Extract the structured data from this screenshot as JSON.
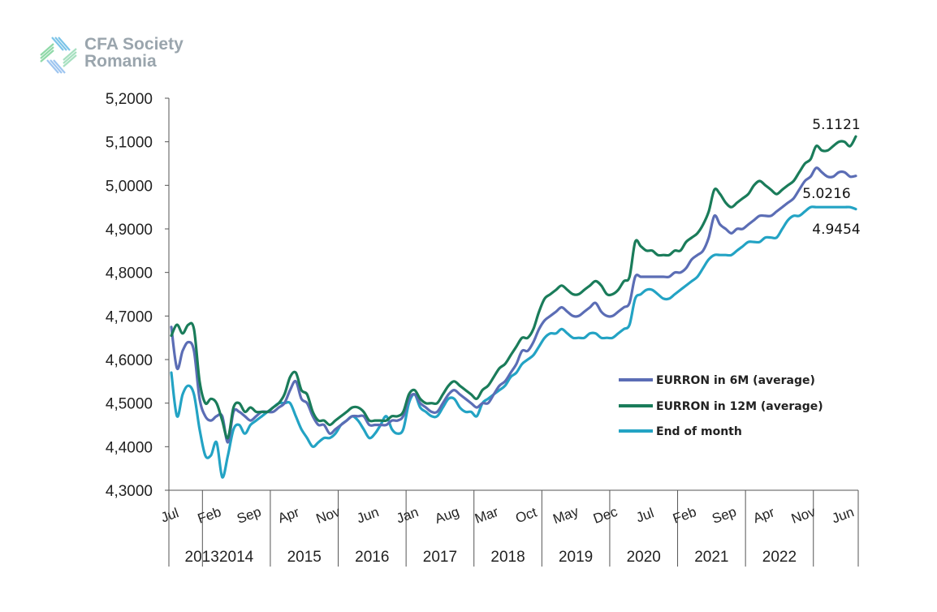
{
  "logo": {
    "line1": "CFA Society",
    "line2": "Romania"
  },
  "chart_data": {
    "type": "line",
    "y_ticks": [
      "4,3000",
      "4,4000",
      "4,5000",
      "4,6000",
      "4,7000",
      "4,8000",
      "4,9000",
      "5,0000",
      "5,1000",
      "5,2000"
    ],
    "ylim": [
      4.3,
      5.2
    ],
    "month_ticks": [
      {
        "label": "Jul",
        "t": 0
      },
      {
        "label": "Feb",
        "t": 7
      },
      {
        "label": "Sep",
        "t": 14
      },
      {
        "label": "Apr",
        "t": 21
      },
      {
        "label": "Nov",
        "t": 28
      },
      {
        "label": "Jun",
        "t": 35
      },
      {
        "label": "Jan",
        "t": 42
      },
      {
        "label": "Aug",
        "t": 49
      },
      {
        "label": "Mar",
        "t": 56
      },
      {
        "label": "Oct",
        "t": 63
      },
      {
        "label": "May",
        "t": 70
      },
      {
        "label": "Dec",
        "t": 77
      },
      {
        "label": "Jul",
        "t": 84
      },
      {
        "label": "Feb",
        "t": 91
      },
      {
        "label": "Sep",
        "t": 98
      },
      {
        "label": "Apr",
        "t": 105
      },
      {
        "label": "Nov",
        "t": 112
      },
      {
        "label": "Jun",
        "t": 119
      }
    ],
    "years": [
      "2013",
      "2014",
      "2015",
      "2016",
      "2017",
      "2018",
      "2019",
      "2020",
      "2021",
      "2022"
    ],
    "series": [
      {
        "name": "EURRON  in 6M (average)",
        "color": "#5b6db5",
        "values": [
          4.675,
          4.58,
          4.62,
          4.64,
          4.62,
          4.51,
          4.47,
          4.46,
          4.47,
          4.47,
          4.41,
          4.48,
          4.48,
          4.47,
          4.46,
          4.47,
          4.48,
          4.48,
          4.48,
          4.49,
          4.5,
          4.53,
          4.55,
          4.51,
          4.5,
          4.47,
          4.45,
          4.45,
          4.43,
          4.44,
          4.45,
          4.46,
          4.47,
          4.47,
          4.47,
          4.45,
          4.45,
          4.45,
          4.45,
          4.46,
          4.46,
          4.47,
          4.51,
          4.52,
          4.5,
          4.49,
          4.48,
          4.48,
          4.5,
          4.52,
          4.53,
          4.52,
          4.51,
          4.5,
          4.49,
          4.5,
          4.5,
          4.52,
          4.54,
          4.55,
          4.57,
          4.59,
          4.62,
          4.62,
          4.64,
          4.67,
          4.69,
          4.7,
          4.71,
          4.72,
          4.71,
          4.7,
          4.7,
          4.71,
          4.72,
          4.73,
          4.71,
          4.7,
          4.7,
          4.71,
          4.72,
          4.73,
          4.79,
          4.79,
          4.79,
          4.79,
          4.79,
          4.79,
          4.79,
          4.8,
          4.8,
          4.81,
          4.83,
          4.84,
          4.85,
          4.88,
          4.93,
          4.91,
          4.9,
          4.89,
          4.9,
          4.9,
          4.91,
          4.92,
          4.93,
          4.93,
          4.93,
          4.94,
          4.95,
          4.96,
          4.97,
          4.99,
          5.01,
          5.02,
          5.04,
          5.03,
          5.02,
          5.02,
          5.03,
          5.03,
          5.02,
          5.0216
        ]
      },
      {
        "name": "EURRON  in 12M (average)",
        "color": "#1a7c5a",
        "values": [
          4.655,
          4.68,
          4.66,
          4.68,
          4.67,
          4.55,
          4.5,
          4.51,
          4.5,
          4.46,
          4.42,
          4.49,
          4.5,
          4.48,
          4.49,
          4.48,
          4.48,
          4.48,
          4.49,
          4.5,
          4.52,
          4.56,
          4.57,
          4.53,
          4.52,
          4.48,
          4.46,
          4.46,
          4.45,
          4.46,
          4.47,
          4.48,
          4.49,
          4.49,
          4.48,
          4.46,
          4.46,
          4.46,
          4.46,
          4.47,
          4.47,
          4.48,
          4.52,
          4.53,
          4.51,
          4.5,
          4.5,
          4.5,
          4.52,
          4.54,
          4.55,
          4.54,
          4.53,
          4.52,
          4.51,
          4.53,
          4.54,
          4.56,
          4.58,
          4.59,
          4.61,
          4.63,
          4.65,
          4.65,
          4.67,
          4.71,
          4.74,
          4.75,
          4.76,
          4.77,
          4.76,
          4.75,
          4.75,
          4.76,
          4.77,
          4.78,
          4.77,
          4.75,
          4.75,
          4.76,
          4.78,
          4.79,
          4.87,
          4.86,
          4.85,
          4.85,
          4.84,
          4.84,
          4.84,
          4.85,
          4.85,
          4.87,
          4.88,
          4.89,
          4.91,
          4.94,
          4.99,
          4.98,
          4.96,
          4.95,
          4.96,
          4.97,
          4.98,
          5.0,
          5.01,
          5.0,
          4.99,
          4.98,
          4.99,
          5.0,
          5.01,
          5.03,
          5.05,
          5.06,
          5.09,
          5.08,
          5.08,
          5.09,
          5.1,
          5.1,
          5.09,
          5.1121
        ]
      },
      {
        "name": "End of month",
        "color": "#23a3c4",
        "values": [
          4.57,
          4.47,
          4.52,
          4.54,
          4.52,
          4.44,
          4.38,
          4.38,
          4.41,
          4.33,
          4.38,
          4.44,
          4.45,
          4.43,
          4.45,
          4.46,
          4.47,
          4.48,
          4.49,
          4.5,
          4.5,
          4.5,
          4.47,
          4.44,
          4.42,
          4.4,
          4.41,
          4.42,
          4.42,
          4.43,
          4.45,
          4.46,
          4.47,
          4.46,
          4.44,
          4.42,
          4.43,
          4.45,
          4.47,
          4.44,
          4.43,
          4.44,
          4.5,
          4.52,
          4.49,
          4.48,
          4.47,
          4.47,
          4.49,
          4.51,
          4.51,
          4.49,
          4.48,
          4.48,
          4.47,
          4.5,
          4.51,
          4.52,
          4.53,
          4.54,
          4.56,
          4.57,
          4.59,
          4.6,
          4.61,
          4.63,
          4.65,
          4.66,
          4.66,
          4.67,
          4.66,
          4.65,
          4.65,
          4.65,
          4.66,
          4.66,
          4.65,
          4.65,
          4.65,
          4.66,
          4.67,
          4.68,
          4.74,
          4.75,
          4.76,
          4.76,
          4.75,
          4.74,
          4.74,
          4.75,
          4.76,
          4.77,
          4.78,
          4.79,
          4.81,
          4.83,
          4.84,
          4.84,
          4.84,
          4.84,
          4.85,
          4.86,
          4.87,
          4.87,
          4.87,
          4.88,
          4.88,
          4.88,
          4.9,
          4.92,
          4.93,
          4.93,
          4.94,
          4.95,
          4.95,
          4.95,
          4.95,
          4.95,
          4.95,
          4.95,
          4.95,
          4.9454
        ]
      }
    ],
    "annotations": [
      "5.1121",
      "5.0216",
      "4.9454"
    ],
    "grid": false,
    "legend_position": "right"
  }
}
